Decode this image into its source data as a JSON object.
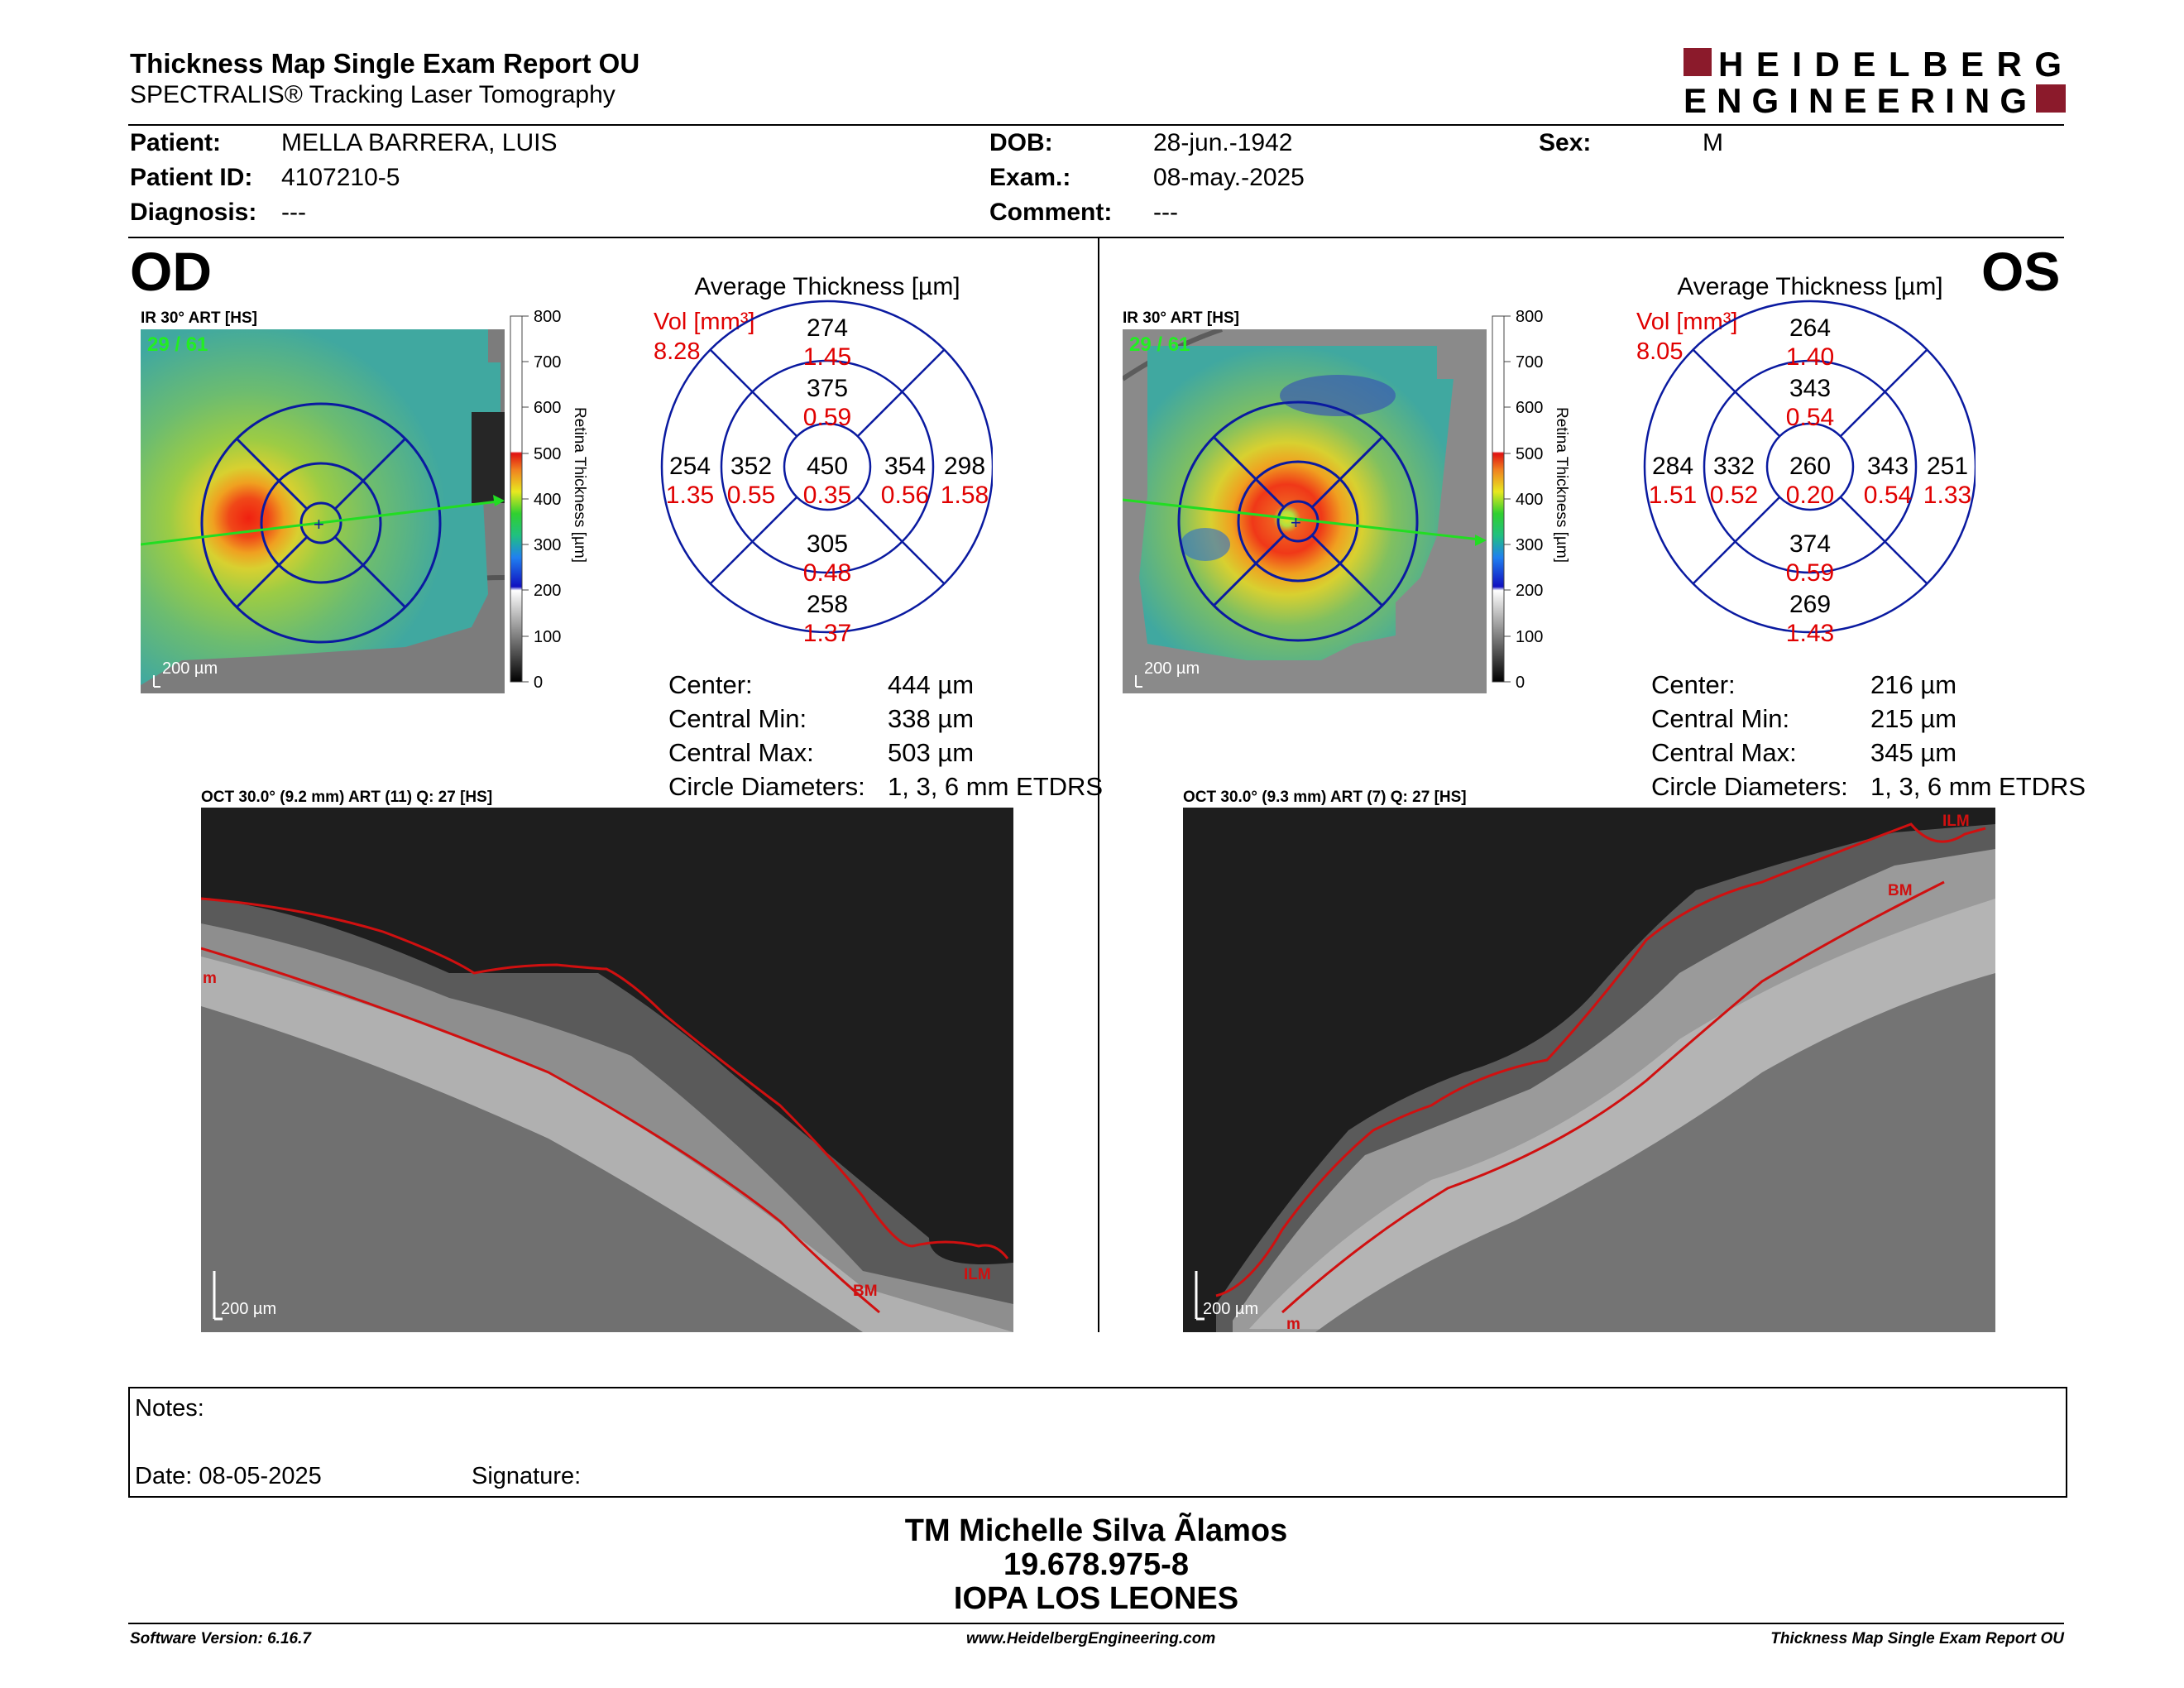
{
  "header": {
    "title": "Thickness Map Single Exam Report OU",
    "subtitle": "SPECTRALIS® Tracking Laser Tomography",
    "logo_line1": "HEIDELBERG",
    "logo_line2": "ENGINEERING"
  },
  "patient": {
    "patient_label": "Patient:",
    "patient_value": "MELLA BARRERA, LUIS",
    "id_label": "Patient ID:",
    "id_value": "4107210-5",
    "diag_label": "Diagnosis:",
    "diag_value": "---",
    "dob_label": "DOB:",
    "dob_value": "28-jun.-1942",
    "exam_label": "Exam.:",
    "exam_value": "08-may.-2025",
    "comment_label": "Comment:",
    "comment_value": "---",
    "sex_label": "Sex:",
    "sex_value": "M"
  },
  "od": {
    "eye": "OD",
    "ir_label": "IR 30° ART [HS]",
    "frame": "29 / 61",
    "scale": "200 µm",
    "avg_title": "Average Thickness [µm]",
    "vol_label": "Vol [mm³]",
    "vol_total": "8.28",
    "grid": {
      "sup_out": "274",
      "sup_out_v": "1.45",
      "sup_in": "375",
      "sup_in_v": "0.59",
      "tmp_out": "254",
      "tmp_out_v": "1.35",
      "tmp_in": "352",
      "tmp_in_v": "0.55",
      "center": "450",
      "center_v": "0.35",
      "nas_in": "354",
      "nas_in_v": "0.56",
      "nas_out": "298",
      "nas_out_v": "1.58",
      "inf_in": "305",
      "inf_in_v": "0.48",
      "inf_out": "258",
      "inf_out_v": "1.37"
    },
    "center_label": "Center:",
    "center_val": "444 µm",
    "cmin_label": "Central Min:",
    "cmin_val": "338 µm",
    "cmax_label": "Central Max:",
    "cmax_val": "503 µm",
    "circ_label": "Circle Diameters:",
    "circ_val": "1, 3, 6 mm ETDRS",
    "oct_label": "OCT 30.0° (9.2 mm) ART (11) Q: 27 [HS]",
    "oct_scale": "200 µm",
    "oct_m": "m",
    "oct_bm": "BM",
    "oct_ilm": "ILM"
  },
  "os": {
    "eye": "OS",
    "ir_label": "IR 30° ART [HS]",
    "frame": "29 / 61",
    "scale": "200 µm",
    "avg_title": "Average Thickness [µm]",
    "vol_label": "Vol [mm³]",
    "vol_total": "8.05",
    "grid": {
      "sup_out": "264",
      "sup_out_v": "1.40",
      "sup_in": "343",
      "sup_in_v": "0.54",
      "tmp_out": "284",
      "tmp_out_v": "1.51",
      "tmp_in": "332",
      "tmp_in_v": "0.52",
      "center": "260",
      "center_v": "0.20",
      "nas_in": "343",
      "nas_in_v": "0.54",
      "nas_out": "251",
      "nas_out_v": "1.33",
      "inf_in": "374",
      "inf_in_v": "0.59",
      "inf_out": "269",
      "inf_out_v": "1.43"
    },
    "center_label": "Center:",
    "center_val": "216 µm",
    "cmin_label": "Central Min:",
    "cmin_val": "215 µm",
    "cmax_label": "Central Max:",
    "cmax_val": "345 µm",
    "circ_label": "Circle Diameters:",
    "circ_val": "1, 3, 6 mm ETDRS",
    "oct_label": "OCT 30.0° (9.3 mm) ART (7) Q: 27 [HS]",
    "oct_scale": "200 µm",
    "oct_m": "m",
    "oct_bm": "BM",
    "oct_ilm": "ILM"
  },
  "colorbar": {
    "ticks": [
      "800",
      "700",
      "600",
      "500",
      "400",
      "300",
      "200",
      "100",
      "0"
    ],
    "title": "Retina Thickness [µm]"
  },
  "notes": {
    "notes_label": "Notes:",
    "date_label": "Date: 08-05-2025",
    "signature_label": "Signature:"
  },
  "signer": {
    "name": "TM Michelle Silva Ãlamos",
    "id": "19.678.975-8",
    "org": "IOPA LOS LEONES"
  },
  "footer": {
    "software": "Software Version: 6.16.7",
    "website": "www.HeidelbergEngineering.com",
    "report": "Thickness Map Single Exam Report OU"
  }
}
